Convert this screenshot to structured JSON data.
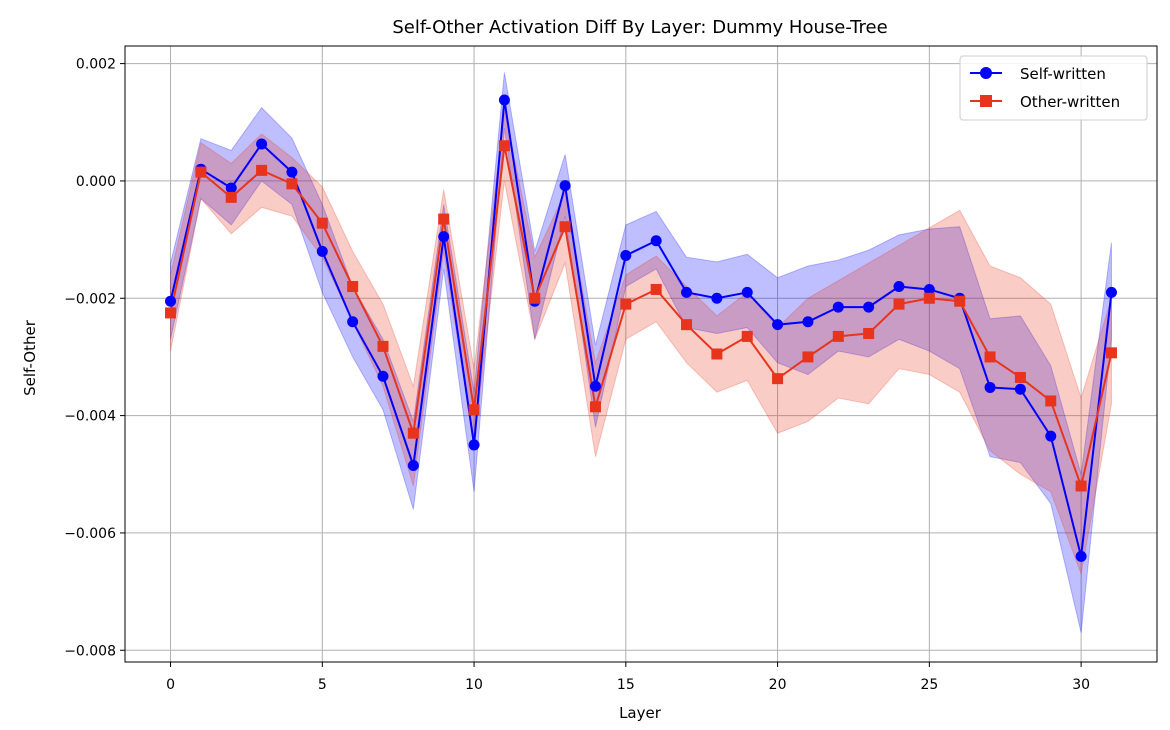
{
  "chart_data": {
    "type": "line",
    "title": "Self-Other Activation Diff By Layer: Dummy House-Tree",
    "xlabel": "Layer",
    "ylabel": "Self-Other",
    "xlim": [
      -1.5,
      32.5
    ],
    "ylim": [
      -0.0082,
      0.0023
    ],
    "x_ticks": [
      0,
      5,
      10,
      15,
      20,
      25,
      30
    ],
    "x_tick_labels": [
      "0",
      "5",
      "10",
      "15",
      "20",
      "25",
      "30"
    ],
    "y_ticks": [
      0.002,
      0.0,
      -0.002,
      -0.004,
      -0.006,
      -0.008
    ],
    "y_tick_labels": [
      "0.002",
      "0.000",
      "−0.002",
      "−0.004",
      "−0.006",
      "−0.008"
    ],
    "grid": true,
    "legend_position": "top-right",
    "x": [
      0,
      1,
      2,
      3,
      4,
      5,
      6,
      7,
      8,
      9,
      10,
      11,
      12,
      13,
      14,
      15,
      16,
      17,
      18,
      19,
      20,
      21,
      22,
      23,
      24,
      25,
      26,
      27,
      28,
      29,
      30,
      31
    ],
    "series": [
      {
        "name": "Self-written",
        "color": "#0000ff",
        "marker": "circle",
        "values": [
          -0.00205,
          0.0002,
          -0.00012,
          0.00063,
          0.00015,
          -0.0012,
          -0.0024,
          -0.00333,
          -0.00485,
          -0.00095,
          -0.0045,
          0.00138,
          -0.00205,
          -8e-05,
          -0.0035,
          -0.00127,
          -0.00102,
          -0.0019,
          -0.002,
          -0.0019,
          -0.00245,
          -0.0024,
          -0.00215,
          -0.00215,
          -0.0018,
          -0.00185,
          -0.002,
          -0.00352,
          -0.00355,
          -0.00435,
          -0.0064,
          -0.0019
        ],
        "band_upper": [
          -0.0014,
          0.00072,
          0.00052,
          0.00125,
          0.00073,
          -0.0004,
          -0.0018,
          -0.0027,
          -0.0041,
          -0.0004,
          -0.0036,
          0.00185,
          -0.0012,
          0.00045,
          -0.0028,
          -0.00075,
          -0.00052,
          -0.0013,
          -0.00138,
          -0.00125,
          -0.00165,
          -0.00145,
          -0.00135,
          -0.00118,
          -0.00092,
          -0.00082,
          -0.00078,
          -0.00235,
          -0.0023,
          -0.00315,
          -0.005,
          -0.00105
        ],
        "band_lower": [
          -0.0027,
          -0.0003,
          -0.00075,
          0.0,
          -0.0004,
          -0.0019,
          -0.003,
          -0.0039,
          -0.0056,
          -0.0015,
          -0.0053,
          0.0009,
          -0.0027,
          -0.0006,
          -0.0042,
          -0.0018,
          -0.0015,
          -0.0025,
          -0.0026,
          -0.0025,
          -0.0031,
          -0.0033,
          -0.0029,
          -0.003,
          -0.0027,
          -0.0029,
          -0.0032,
          -0.0047,
          -0.0048,
          -0.0055,
          -0.0077,
          -0.0027
        ]
      },
      {
        "name": "Other-written",
        "color": "#e8341c",
        "marker": "square",
        "values": [
          -0.00225,
          0.00015,
          -0.00028,
          0.00018,
          -5e-05,
          -0.00072,
          -0.0018,
          -0.00282,
          -0.0043,
          -0.00065,
          -0.0039,
          0.0006,
          -0.002,
          -0.00078,
          -0.00385,
          -0.0021,
          -0.00185,
          -0.00245,
          -0.00295,
          -0.00265,
          -0.00337,
          -0.003,
          -0.00265,
          -0.0026,
          -0.0021,
          -0.002,
          -0.00205,
          -0.003,
          -0.00335,
          -0.00375,
          -0.0052,
          -0.00293
        ],
        "band_upper": [
          -0.0016,
          0.00065,
          0.0003,
          0.0008,
          0.0004,
          -0.0001,
          -0.0012,
          -0.0021,
          -0.0035,
          -0.00015,
          -0.0032,
          0.0012,
          -0.0013,
          -0.0002,
          -0.0031,
          -0.0016,
          -0.00128,
          -0.0018,
          -0.0023,
          -0.0019,
          -0.0025,
          -0.002,
          -0.0017,
          -0.0014,
          -0.0011,
          -0.0008,
          -0.0005,
          -0.00145,
          -0.00165,
          -0.0021,
          -0.0037,
          -0.002
        ],
        "band_lower": [
          -0.0029,
          -0.0003,
          -0.0009,
          -0.00045,
          -0.0006,
          -0.0013,
          -0.0024,
          -0.0035,
          -0.0052,
          -0.0012,
          -0.0045,
          0.0,
          -0.0027,
          -0.0014,
          -0.0047,
          -0.0027,
          -0.0024,
          -0.0031,
          -0.0036,
          -0.0034,
          -0.0043,
          -0.0041,
          -0.0037,
          -0.0038,
          -0.0032,
          -0.0033,
          -0.0036,
          -0.0046,
          -0.005,
          -0.0053,
          -0.0067,
          -0.0038
        ]
      }
    ]
  }
}
